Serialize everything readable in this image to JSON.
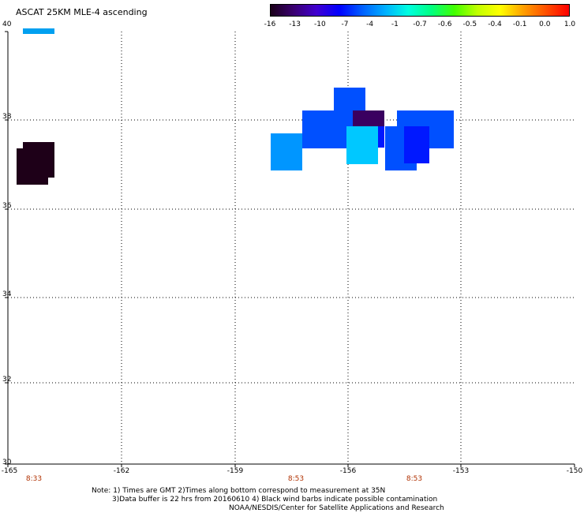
{
  "title": "ASCAT 25KM MLE-4 ascending",
  "colorbar": {
    "labels": [
      "-16",
      "-13",
      "-10",
      "-7",
      "-4",
      "-1",
      "-0.7",
      "-0.6",
      "-0.5",
      "-0.4",
      "-0.1",
      "0.0",
      "1.0"
    ],
    "colors": [
      "#1a0018",
      "#3a0070",
      "#4000d0",
      "#0000ff",
      "#0060ff",
      "#00b0ff",
      "#00ffe0",
      "#00ff80",
      "#40ff00",
      "#c0ff00",
      "#ffff00",
      "#ffa000",
      "#ff5000",
      "#ff0000"
    ]
  },
  "axes": {
    "y_labels": [
      "40",
      "38",
      "36",
      "34",
      "32",
      "30"
    ],
    "x_labels": [
      "-165",
      "-162",
      "-159",
      "-156",
      "-153",
      "-150"
    ],
    "time_labels": [
      "8:33",
      "8:53",
      "8:53"
    ]
  },
  "map_data": {
    "lon_range": [
      -165,
      -150
    ],
    "lat_range": [
      30,
      40
    ],
    "colors_used": {
      "dark": "#1e0018",
      "purple": "#3a0060",
      "blue": "#0050ff",
      "deep_blue": "#0018ff",
      "light_blue": "#0096ff",
      "cyan": "#00c8ff",
      "legend_swatch": "#00a0f0"
    }
  },
  "notes": {
    "line1": "Note: 1) Times are GMT 2)Times along bottom correspond to measurement at 35N",
    "line2": "3)Data buffer is 22 hrs from 20160610 4) Black wind barbs indicate possible contamination",
    "line3": "NOAA/NESDIS/Center for Satellite Applications and Research"
  }
}
